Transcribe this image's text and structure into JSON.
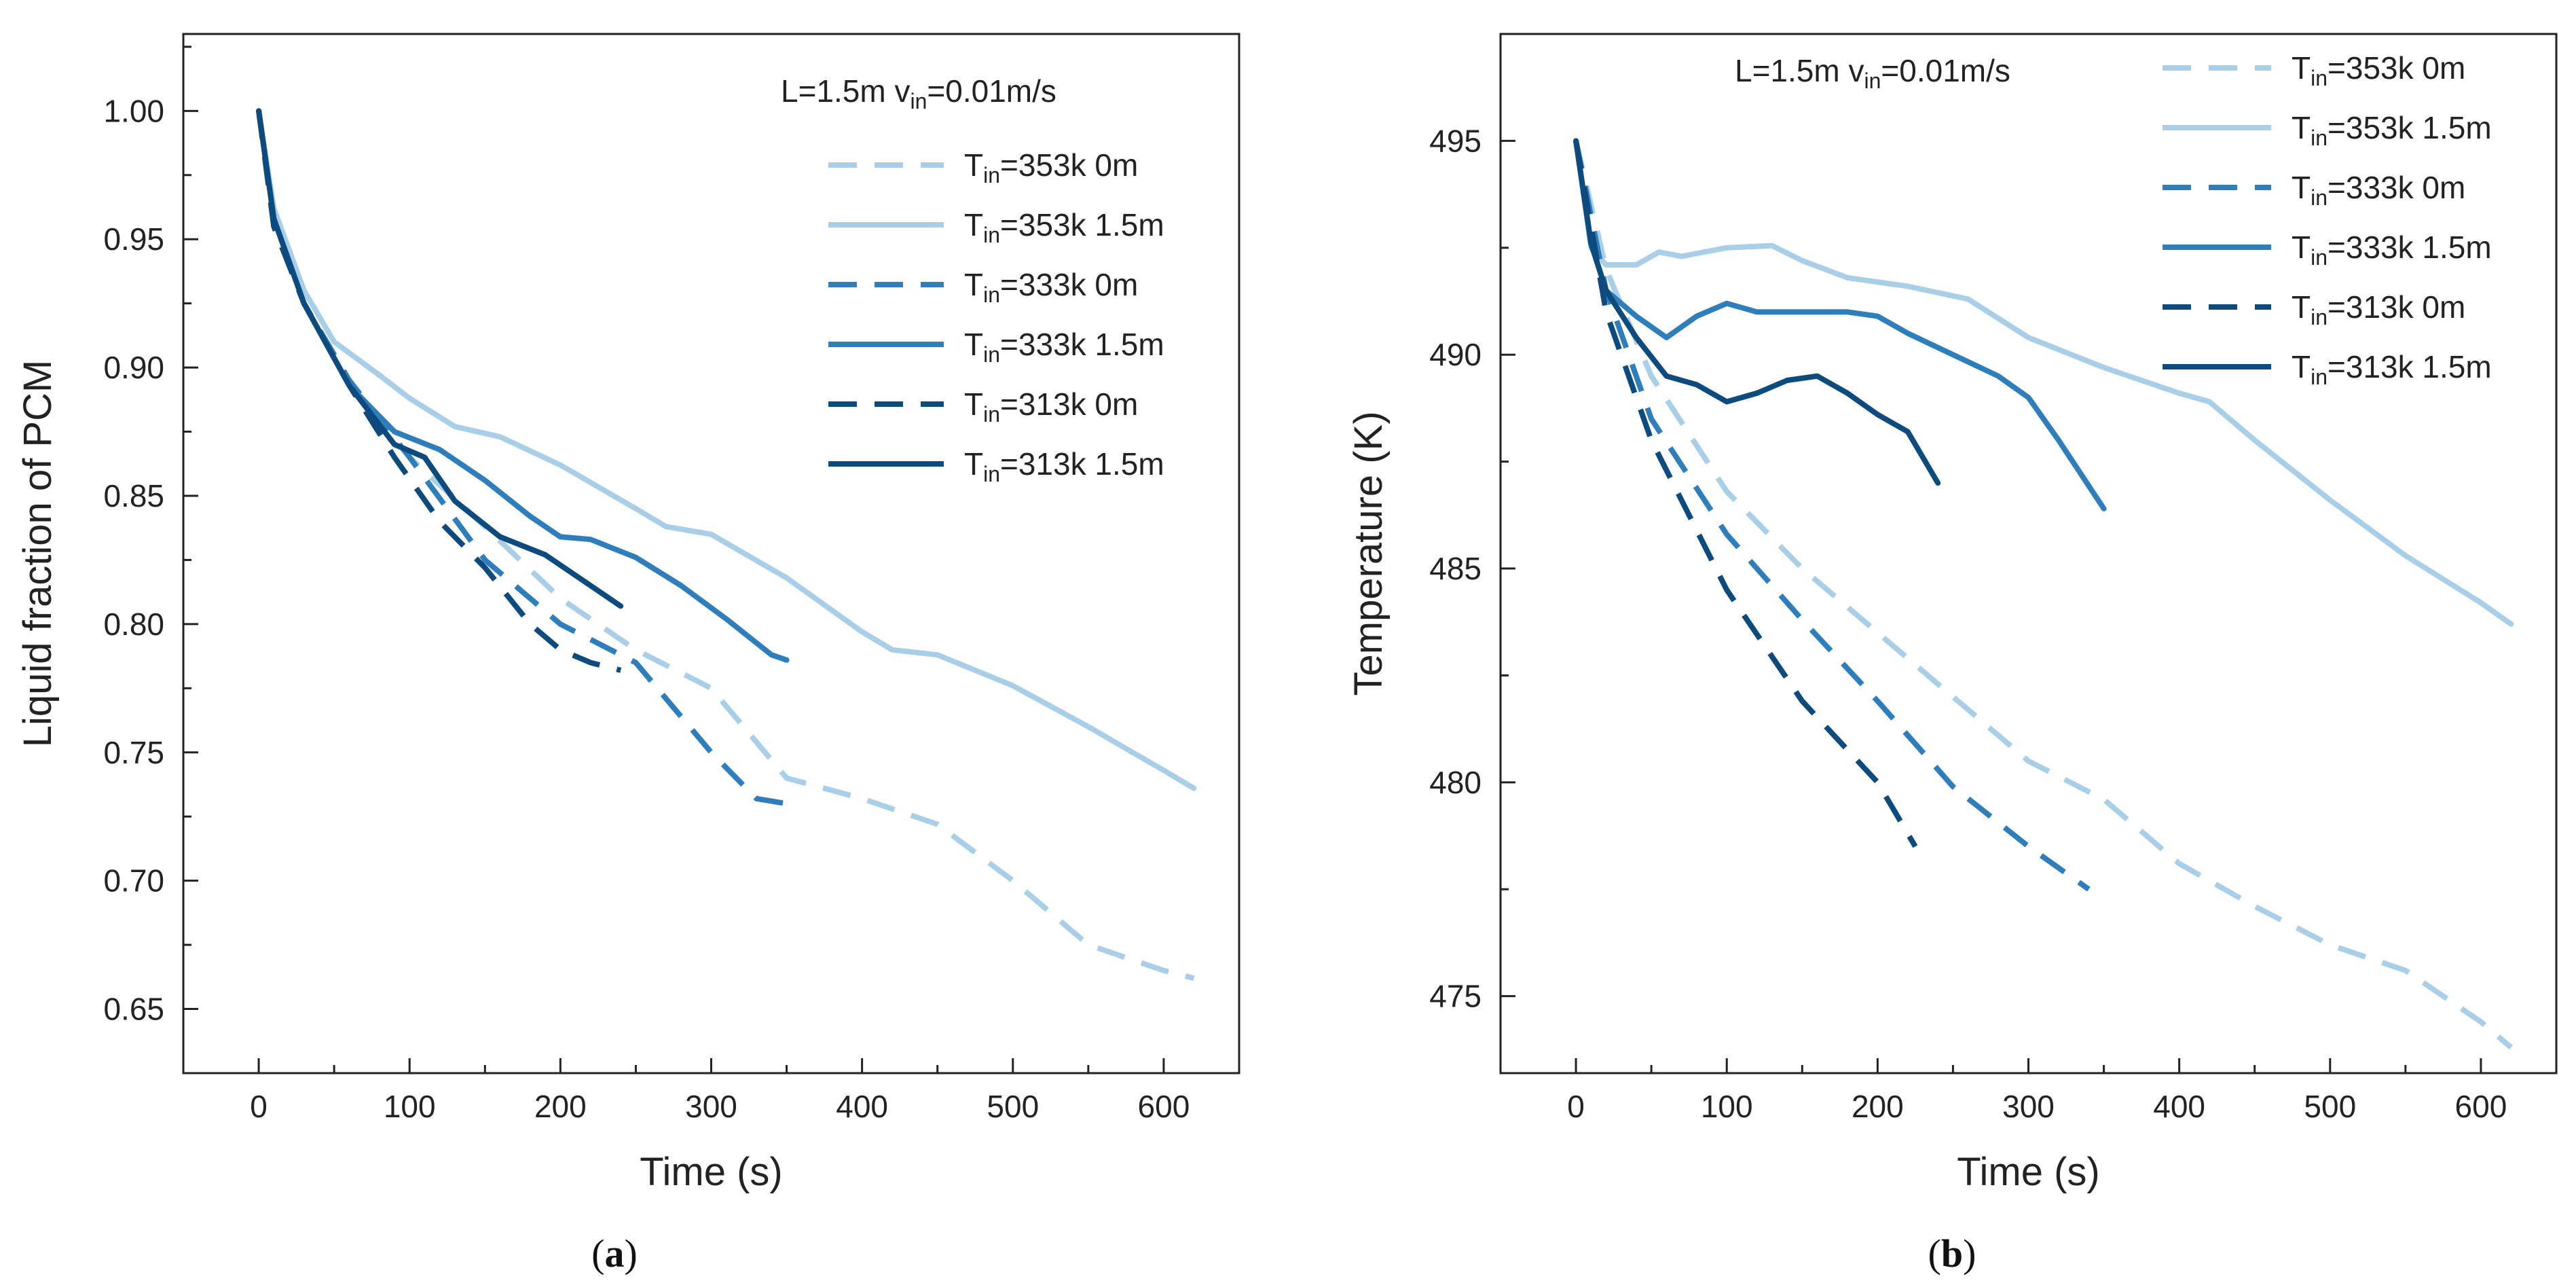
{
  "chart_data": [
    {
      "type": "line",
      "panel_label_open": "(",
      "panel_label_letter": "a",
      "panel_label_close": ")",
      "annotation_prefix": "L=1.5m v",
      "annotation_sub": "in",
      "annotation_suffix": "=0.01m/s",
      "xlabel": "Time (s)",
      "ylabel": "Liquid fraction of PCM",
      "xlim": [
        -50,
        650
      ],
      "ylim": [
        0.625,
        1.03
      ],
      "xticks": [
        0,
        100,
        200,
        300,
        400,
        500,
        600
      ],
      "xtick_labels": [
        "0",
        "100",
        "200",
        "300",
        "400",
        "500",
        "600"
      ],
      "yticks": [
        0.65,
        0.7,
        0.75,
        0.8,
        0.85,
        0.9,
        0.95,
        1.0
      ],
      "ytick_labels": [
        "0.65",
        "0.70",
        "0.75",
        "0.80",
        "0.85",
        "0.90",
        "0.95",
        "1.00"
      ],
      "legend_position": "top-right",
      "series": [
        {
          "name": "Tin=353k 0m",
          "label_main": "T",
          "label_sub": "in",
          "label_rest": "=353k 0m",
          "color": "#a9cfe8",
          "dashed": true,
          "x": [
            0,
            10,
            30,
            60,
            100,
            150,
            200,
            250,
            300,
            350,
            400,
            450,
            500,
            550,
            600,
            620
          ],
          "y": [
            1.0,
            0.955,
            0.925,
            0.895,
            0.865,
            0.838,
            0.81,
            0.79,
            0.775,
            0.74,
            0.732,
            0.722,
            0.7,
            0.675,
            0.665,
            0.662
          ]
        },
        {
          "name": "Tin=353k 1.5m",
          "label_main": "T",
          "label_sub": "in",
          "label_rest": "=353k 1.5m",
          "color": "#a9cfe8",
          "dashed": false,
          "x": [
            0,
            10,
            30,
            50,
            80,
            100,
            130,
            160,
            200,
            250,
            270,
            300,
            350,
            400,
            420,
            450,
            500,
            550,
            600,
            620
          ],
          "y": [
            1.0,
            0.962,
            0.93,
            0.91,
            0.897,
            0.888,
            0.877,
            0.873,
            0.862,
            0.845,
            0.838,
            0.835,
            0.818,
            0.797,
            0.79,
            0.788,
            0.776,
            0.76,
            0.743,
            0.736
          ]
        },
        {
          "name": "Tin=333k 0m",
          "label_main": "T",
          "label_sub": "in",
          "label_rest": "=333k 0m",
          "color": "#2f7ebc",
          "dashed": true,
          "x": [
            0,
            10,
            30,
            60,
            100,
            150,
            200,
            250,
            300,
            330,
            350
          ],
          "y": [
            1.0,
            0.955,
            0.925,
            0.895,
            0.865,
            0.825,
            0.8,
            0.785,
            0.75,
            0.732,
            0.73
          ]
        },
        {
          "name": "Tin=333k 1.5m",
          "label_main": "T",
          "label_sub": "in",
          "label_rest": "=333k 1.5m",
          "color": "#2f7ebc",
          "dashed": false,
          "x": [
            0,
            10,
            30,
            60,
            90,
            120,
            150,
            180,
            200,
            220,
            250,
            280,
            310,
            340,
            350
          ],
          "y": [
            1.0,
            0.958,
            0.925,
            0.893,
            0.875,
            0.868,
            0.856,
            0.842,
            0.834,
            0.833,
            0.826,
            0.815,
            0.802,
            0.788,
            0.786
          ]
        },
        {
          "name": "Tin=313k 0m",
          "label_main": "T",
          "label_sub": "in",
          "label_rest": "=313k 0m",
          "color": "#0d4a7e",
          "dashed": true,
          "x": [
            0,
            10,
            30,
            60,
            90,
            120,
            150,
            180,
            200,
            220,
            240
          ],
          "y": [
            1.0,
            0.955,
            0.925,
            0.893,
            0.865,
            0.84,
            0.822,
            0.8,
            0.79,
            0.785,
            0.782
          ]
        },
        {
          "name": "Tin=313k 1.5m",
          "label_main": "T",
          "label_sub": "in",
          "label_rest": "=313k 1.5m",
          "color": "#0d4a7e",
          "dashed": false,
          "x": [
            0,
            10,
            30,
            60,
            90,
            110,
            130,
            160,
            190,
            220,
            240
          ],
          "y": [
            1.0,
            0.958,
            0.925,
            0.893,
            0.87,
            0.865,
            0.848,
            0.834,
            0.827,
            0.815,
            0.807
          ]
        }
      ]
    },
    {
      "type": "line",
      "panel_label_open": "(",
      "panel_label_letter": "b",
      "panel_label_close": ")",
      "annotation_prefix": "L=1.5m v",
      "annotation_sub": "in",
      "annotation_suffix": "=0.01m/s",
      "xlabel": "Time (s)",
      "ylabel": "Temperature (K)",
      "xlim": [
        -50,
        650
      ],
      "ylim": [
        473.2,
        497.5
      ],
      "xticks": [
        0,
        100,
        200,
        300,
        400,
        500,
        600
      ],
      "xtick_labels": [
        "0",
        "100",
        "200",
        "300",
        "400",
        "500",
        "600"
      ],
      "yticks": [
        475,
        480,
        485,
        490,
        495
      ],
      "ytick_labels": [
        "475",
        "480",
        "485",
        "490",
        "495"
      ],
      "legend_position": "top-right",
      "series": [
        {
          "name": "Tin=353k 0m",
          "label_main": "T",
          "label_sub": "in",
          "label_rest": "=353k 0m",
          "color": "#a9cfe8",
          "dashed": true,
          "x": [
            0,
            20,
            50,
            100,
            150,
            200,
            250,
            300,
            350,
            400,
            450,
            500,
            550,
            600,
            620
          ],
          "y": [
            495,
            492,
            489.5,
            486.8,
            485,
            483.5,
            482,
            480.5,
            479.6,
            478.1,
            477.1,
            476.2,
            475.6,
            474.4,
            473.8
          ]
        },
        {
          "name": "Tin=353k 1.5m",
          "label_main": "T",
          "label_sub": "in",
          "label_rest": "=353k 1.5m",
          "color": "#a9cfe8",
          "dashed": false,
          "x": [
            0,
            10,
            20,
            40,
            55,
            70,
            100,
            130,
            150,
            180,
            220,
            260,
            300,
            350,
            400,
            420,
            450,
            500,
            550,
            600,
            620
          ],
          "y": [
            495,
            492.5,
            492.1,
            492.1,
            492.4,
            492.3,
            492.5,
            492.55,
            492.2,
            491.8,
            491.6,
            491.3,
            490.4,
            489.7,
            489.1,
            488.9,
            488,
            486.6,
            485.3,
            484.2,
            483.7
          ]
        },
        {
          "name": "Tin=333k 0m",
          "label_main": "T",
          "label_sub": "in",
          "label_rest": "=333k 0m",
          "color": "#2f7ebc",
          "dashed": true,
          "x": [
            0,
            20,
            50,
            100,
            150,
            200,
            250,
            300,
            340
          ],
          "y": [
            495,
            491.5,
            488.5,
            485.8,
            483.8,
            481.9,
            479.9,
            478.5,
            477.5
          ]
        },
        {
          "name": "Tin=333k 1.5m",
          "label_main": "T",
          "label_sub": "in",
          "label_rest": "=333k 1.5m",
          "color": "#2f7ebc",
          "dashed": false,
          "x": [
            0,
            10,
            20,
            40,
            60,
            80,
            100,
            120,
            150,
            180,
            200,
            220,
            250,
            280,
            300,
            320,
            350
          ],
          "y": [
            495,
            492.6,
            491.5,
            490.9,
            490.4,
            490.9,
            491.2,
            491,
            491,
            491,
            490.9,
            490.5,
            490,
            489.5,
            489,
            488,
            486.4
          ]
        },
        {
          "name": "Tin=313k 0m",
          "label_main": "T",
          "label_sub": "in",
          "label_rest": "=313k 0m",
          "color": "#0d4a7e",
          "dashed": true,
          "x": [
            0,
            20,
            50,
            100,
            150,
            200,
            225
          ],
          "y": [
            495,
            491,
            488,
            484.5,
            481.9,
            480,
            478.5
          ]
        },
        {
          "name": "Tin=313k 1.5m",
          "label_main": "T",
          "label_sub": "in",
          "label_rest": "=313k 1.5m",
          "color": "#0d4a7e",
          "dashed": false,
          "x": [
            0,
            10,
            20,
            40,
            60,
            80,
            100,
            120,
            140,
            160,
            180,
            200,
            220,
            240
          ],
          "y": [
            495,
            492.6,
            491.5,
            490.4,
            489.5,
            489.3,
            488.9,
            489.1,
            489.4,
            489.5,
            489.1,
            488.6,
            488.2,
            487
          ]
        }
      ]
    }
  ]
}
